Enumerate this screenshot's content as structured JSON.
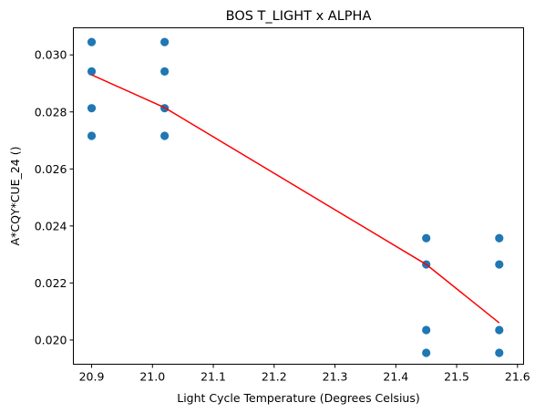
{
  "chart_data": {
    "type": "scatter",
    "title": "BOS T_LIGHT x ALPHA",
    "xlabel": "Light Cycle Temperature (Degrees Celsius)",
    "ylabel": "A*CQY*CUE_24 ()",
    "xlim": [
      20.87,
      21.61
    ],
    "ylim": [
      0.01915,
      0.03095
    ],
    "xticks": [
      "20.9",
      "21.0",
      "21.1",
      "21.2",
      "21.3",
      "21.4",
      "21.5",
      "21.6"
    ],
    "yticks": [
      "0.020",
      "0.022",
      "0.024",
      "0.026",
      "0.028",
      "0.030"
    ],
    "grid": false,
    "series": [
      {
        "type": "scatter",
        "color": "#1f77b4",
        "x": [
          20.9,
          20.9,
          20.9,
          20.9,
          21.02,
          21.02,
          21.02,
          21.02,
          21.45,
          21.45,
          21.45,
          21.45,
          21.57,
          21.57,
          21.57,
          21.57
        ],
        "y": [
          0.03045,
          0.02942,
          0.02813,
          0.02716,
          0.03045,
          0.02942,
          0.02813,
          0.02716,
          0.02357,
          0.02265,
          0.02035,
          0.01955,
          0.02357,
          0.02265,
          0.02035,
          0.01955
        ]
      },
      {
        "type": "line",
        "color": "#ff0000",
        "x": [
          20.9,
          21.02,
          21.45,
          21.57
        ],
        "y": [
          0.0293,
          0.02815,
          0.02265,
          0.0206
        ]
      }
    ]
  }
}
